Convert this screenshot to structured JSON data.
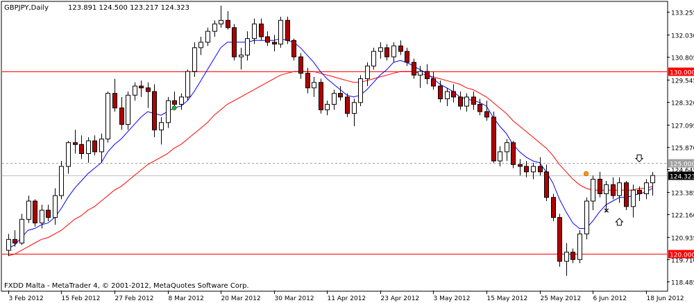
{
  "header": {
    "symbol_tf": "GBPJPY,Daily",
    "ohlc": "123.891 124.500 123.217 124.323"
  },
  "footer": {
    "copyright": "FXDD Malta - MetaTrader 4, © 2001-2012, MetaQuotes Software Corp."
  },
  "colors": {
    "background": "#ffffff",
    "frame": "#000000",
    "bull_body": "#ffffff",
    "bear_body": "#b00000",
    "candle_outline": "#000000",
    "ma_fast": "#0000ff",
    "ma_slow": "#ff0000",
    "hline_red": "#ff0000",
    "hline_gray": "#a0a0a0",
    "current_price_bg": "#000000",
    "axis_text": "#000000",
    "level_label_bg_red": "#ff0000",
    "level_label_bg_gray": "#a0a0a0",
    "fractal_up_marker": "#ff9900",
    "fractal_down_marker": "#33aa33"
  },
  "chart_data": {
    "type": "candlestick",
    "title": "GBPJPY,Daily",
    "ylim": [
      118.0,
      133.8
    ],
    "y_ticks": [
      "133.255",
      "132.030",
      "130.805",
      "129.545",
      "128.320",
      "127.095",
      "125.870",
      "124.645",
      "123.385",
      "122.160",
      "120.935",
      "119.710",
      "118.485"
    ],
    "x_ticks": [
      "3 Feb 2012",
      "15 Feb 2012",
      "27 Feb 2012",
      "8 Mar 2012",
      "20 Mar 2012",
      "30 Mar 2012",
      "11 Apr 2012",
      "23 Apr 2012",
      "3 May 2012",
      "15 May 2012",
      "25 May 2012",
      "6 Jun 2012",
      "18 Jun 2012"
    ],
    "x_tick_index": [
      0,
      8,
      16,
      24,
      32,
      40,
      48,
      56,
      64,
      72,
      80,
      88,
      96
    ],
    "horizontal_lines": [
      {
        "price": 130.0,
        "label": "130.000",
        "style": "solid",
        "color": "red"
      },
      {
        "price": 125.0,
        "label": "125.000",
        "style": "dashed",
        "color": "gray"
      },
      {
        "price": 124.323,
        "label": "124.323",
        "style": "solid",
        "color": "gray-current"
      },
      {
        "price": 120.0,
        "label": "120.000",
        "style": "solid",
        "color": "red"
      }
    ],
    "candles": [
      [
        120.2,
        121.1,
        119.9,
        120.8
      ],
      [
        120.8,
        121.3,
        120.4,
        120.6
      ],
      [
        120.6,
        122.2,
        120.5,
        121.9
      ],
      [
        121.9,
        123.2,
        121.7,
        122.9
      ],
      [
        122.9,
        123.0,
        121.5,
        121.7
      ],
      [
        121.7,
        122.7,
        121.4,
        122.4
      ],
      [
        122.4,
        122.7,
        121.8,
        122.0
      ],
      [
        122.0,
        123.6,
        121.6,
        123.2
      ],
      [
        123.2,
        125.1,
        123.0,
        124.8
      ],
      [
        124.8,
        126.2,
        124.4,
        126.1
      ],
      [
        126.1,
        126.8,
        125.5,
        126.0
      ],
      [
        126.0,
        126.5,
        125.2,
        125.5
      ],
      [
        125.5,
        126.4,
        125.0,
        126.2
      ],
      [
        126.2,
        126.5,
        125.4,
        125.6
      ],
      [
        125.6,
        126.6,
        125.0,
        126.3
      ],
      [
        126.3,
        128.9,
        126.1,
        128.8
      ],
      [
        128.8,
        129.6,
        127.8,
        128.0
      ],
      [
        128.0,
        128.6,
        126.8,
        127.1
      ],
      [
        127.1,
        128.9,
        126.8,
        128.7
      ],
      [
        128.7,
        129.4,
        128.4,
        129.2
      ],
      [
        129.2,
        129.5,
        128.6,
        129.1
      ],
      [
        129.1,
        129.4,
        128.0,
        128.9
      ],
      [
        128.9,
        129.3,
        126.4,
        126.8
      ],
      [
        126.8,
        127.5,
        126.0,
        127.2
      ],
      [
        127.2,
        128.6,
        126.9,
        128.4
      ],
      [
        128.4,
        128.9,
        128.0,
        128.2
      ],
      [
        128.2,
        128.8,
        127.9,
        128.6
      ],
      [
        128.6,
        130.1,
        128.4,
        130.0
      ],
      [
        130.0,
        131.6,
        129.7,
        131.3
      ],
      [
        131.3,
        131.9,
        130.9,
        131.6
      ],
      [
        131.6,
        132.4,
        131.4,
        132.2
      ],
      [
        132.2,
        132.8,
        131.9,
        132.6
      ],
      [
        132.6,
        133.6,
        132.4,
        132.8
      ],
      [
        132.8,
        133.3,
        132.3,
        132.4
      ],
      [
        132.4,
        132.6,
        130.6,
        130.8
      ],
      [
        130.8,
        131.3,
        130.1,
        130.9
      ],
      [
        130.9,
        132.2,
        130.6,
        131.8
      ],
      [
        131.8,
        132.9,
        131.5,
        132.6
      ],
      [
        132.6,
        132.9,
        131.7,
        131.9
      ],
      [
        131.9,
        132.2,
        131.4,
        131.6
      ],
      [
        131.6,
        132.0,
        131.1,
        131.5
      ],
      [
        131.5,
        133.0,
        131.3,
        132.8
      ],
      [
        132.8,
        133.0,
        131.5,
        131.7
      ],
      [
        131.7,
        131.8,
        130.6,
        130.8
      ],
      [
        130.8,
        131.0,
        129.6,
        129.9
      ],
      [
        129.9,
        130.2,
        128.8,
        129.1
      ],
      [
        129.1,
        129.7,
        128.6,
        129.4
      ],
      [
        129.4,
        129.6,
        127.7,
        127.9
      ],
      [
        127.9,
        128.4,
        127.6,
        128.2
      ],
      [
        128.2,
        129.0,
        127.9,
        128.8
      ],
      [
        128.8,
        129.2,
        128.4,
        128.6
      ],
      [
        128.6,
        128.8,
        127.5,
        127.7
      ],
      [
        127.7,
        128.5,
        127.0,
        128.3
      ],
      [
        128.3,
        129.8,
        128.1,
        129.6
      ],
      [
        129.6,
        130.5,
        129.2,
        130.3
      ],
      [
        130.3,
        131.3,
        130.1,
        131.1
      ],
      [
        131.1,
        131.6,
        130.7,
        131.3
      ],
      [
        131.3,
        131.5,
        130.6,
        130.8
      ],
      [
        130.8,
        131.6,
        130.5,
        131.4
      ],
      [
        131.4,
        131.7,
        130.9,
        131.1
      ],
      [
        131.1,
        131.3,
        130.3,
        130.5
      ],
      [
        130.5,
        130.7,
        129.6,
        129.8
      ],
      [
        129.8,
        130.3,
        129.1,
        130.0
      ],
      [
        130.0,
        130.4,
        129.3,
        129.6
      ],
      [
        129.6,
        130.0,
        129.0,
        129.2
      ],
      [
        129.2,
        129.5,
        128.3,
        128.5
      ],
      [
        128.5,
        129.1,
        128.1,
        128.9
      ],
      [
        128.9,
        129.3,
        128.3,
        128.6
      ],
      [
        128.6,
        128.9,
        127.9,
        128.1
      ],
      [
        128.1,
        128.8,
        127.8,
        128.6
      ],
      [
        128.6,
        128.9,
        127.9,
        128.2
      ],
      [
        128.2,
        128.5,
        127.6,
        127.8
      ],
      [
        127.8,
        128.4,
        127.3,
        127.5
      ],
      [
        127.5,
        127.8,
        125.0,
        125.1
      ],
      [
        125.1,
        125.9,
        124.8,
        125.6
      ],
      [
        125.6,
        126.3,
        125.1,
        126.1
      ],
      [
        126.1,
        126.2,
        124.7,
        124.9
      ],
      [
        124.9,
        125.2,
        124.3,
        124.8
      ],
      [
        124.8,
        125.1,
        124.2,
        124.5
      ],
      [
        124.5,
        125.0,
        124.1,
        124.8
      ],
      [
        124.8,
        125.3,
        124.3,
        124.5
      ],
      [
        124.5,
        124.9,
        122.9,
        123.1
      ],
      [
        123.1,
        123.3,
        121.8,
        122.0
      ],
      [
        122.0,
        122.2,
        119.3,
        119.6
      ],
      [
        119.6,
        120.6,
        118.8,
        120.1
      ],
      [
        120.1,
        120.3,
        119.5,
        119.7
      ],
      [
        119.7,
        121.3,
        119.5,
        121.1
      ],
      [
        121.1,
        123.1,
        120.8,
        122.9
      ],
      [
        122.9,
        124.3,
        122.4,
        124.1
      ],
      [
        124.1,
        124.5,
        123.1,
        123.3
      ],
      [
        123.3,
        124.0,
        122.3,
        123.8
      ],
      [
        123.8,
        124.2,
        123.0,
        123.2
      ],
      [
        123.2,
        124.2,
        122.8,
        123.9
      ],
      [
        123.9,
        124.0,
        122.4,
        122.6
      ],
      [
        122.6,
        123.8,
        122.0,
        123.5
      ],
      [
        123.5,
        123.7,
        122.9,
        123.3
      ],
      [
        123.3,
        124.1,
        123.0,
        123.9
      ],
      [
        123.9,
        124.5,
        123.2,
        124.3
      ]
    ],
    "ma_fast_values": [
      120.3,
      120.5,
      120.9,
      121.3,
      121.4,
      121.6,
      121.7,
      122.0,
      122.5,
      123.1,
      123.6,
      124.0,
      124.4,
      124.7,
      125.0,
      125.6,
      126.0,
      126.3,
      126.7,
      127.1,
      127.5,
      127.8,
      127.7,
      127.6,
      127.8,
      128.0,
      128.1,
      128.4,
      128.9,
      129.5,
      130.1,
      130.7,
      131.3,
      131.6,
      131.6,
      131.6,
      131.6,
      131.7,
      131.7,
      131.7,
      131.7,
      131.8,
      131.7,
      131.6,
      131.3,
      130.9,
      130.5,
      130.0,
      129.6,
      129.3,
      129.0,
      128.7,
      128.6,
      128.7,
      129.0,
      129.4,
      129.8,
      130.1,
      130.5,
      130.6,
      130.5,
      130.3,
      130.1,
      129.9,
      129.6,
      129.3,
      129.1,
      128.9,
      128.6,
      128.5,
      128.4,
      128.3,
      128.1,
      127.5,
      127.0,
      126.6,
      126.0,
      125.6,
      125.3,
      125.1,
      125.0,
      124.5,
      123.9,
      123.0,
      122.3,
      121.7,
      121.4,
      121.4,
      121.8,
      122.3,
      122.7,
      122.9,
      123.1,
      123.1,
      123.2,
      123.3,
      123.4,
      123.6
    ],
    "ma_slow_values": [
      119.9,
      120.0,
      120.2,
      120.4,
      120.6,
      120.8,
      120.9,
      121.1,
      121.3,
      121.6,
      121.9,
      122.1,
      122.4,
      122.6,
      122.9,
      123.2,
      123.5,
      123.7,
      124.0,
      124.3,
      124.6,
      124.9,
      125.1,
      125.3,
      125.5,
      125.8,
      126.0,
      126.3,
      126.6,
      126.9,
      127.2,
      127.6,
      127.9,
      128.2,
      128.4,
      128.6,
      128.8,
      129.0,
      129.2,
      129.4,
      129.6,
      129.8,
      129.9,
      130.0,
      130.0,
      130.0,
      130.0,
      129.9,
      129.8,
      129.7,
      129.6,
      129.5,
      129.4,
      129.4,
      129.5,
      129.6,
      129.7,
      129.8,
      129.9,
      130.0,
      130.0,
      130.0,
      129.9,
      129.8,
      129.7,
      129.6,
      129.5,
      129.4,
      129.3,
      129.1,
      129.0,
      128.8,
      128.6,
      128.3,
      128.0,
      127.7,
      127.3,
      127.0,
      126.7,
      126.4,
      126.1,
      125.8,
      125.4,
      124.9,
      124.5,
      124.1,
      123.8,
      123.6,
      123.5,
      123.5,
      123.5,
      123.5,
      123.5,
      123.5,
      123.5,
      123.6,
      123.6,
      123.7
    ],
    "fractal_markers": [
      {
        "index": 25,
        "price": 128.0,
        "kind": "down-dot"
      },
      {
        "index": 87,
        "price": 124.4,
        "kind": "up-dot"
      },
      {
        "index": 95,
        "price": 125.2,
        "kind": "arrow-down"
      },
      {
        "index": 92,
        "price": 121.8,
        "kind": "arrow-up"
      },
      {
        "index": 90,
        "price": 122.4,
        "kind": "cross"
      }
    ]
  }
}
